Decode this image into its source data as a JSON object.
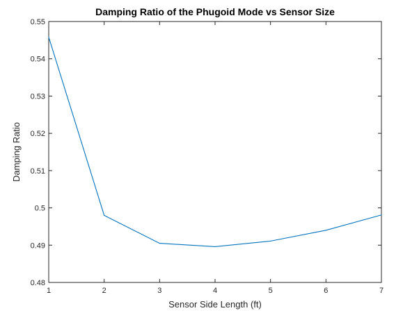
{
  "chart_data": {
    "type": "line",
    "title": "Damping Ratio of the Phugoid Mode vs Sensor Size",
    "xlabel": "Sensor Side Length (ft)",
    "ylabel": "Damping Ratio",
    "xlim": [
      1,
      7
    ],
    "ylim": [
      0.48,
      0.55
    ],
    "x_ticks": [
      "1",
      "2",
      "3",
      "4",
      "5",
      "6",
      "7"
    ],
    "y_ticks": [
      "0.48",
      "0.49",
      "0.5",
      "0.51",
      "0.52",
      "0.53",
      "0.54",
      "0.55"
    ],
    "grid": false,
    "series": [
      {
        "x": [
          1,
          2,
          3,
          4,
          5,
          6,
          7
        ],
        "y": [
          0.5458,
          0.498,
          0.4905,
          0.4896,
          0.4911,
          0.494,
          0.4981
        ]
      }
    ],
    "line_color": "#0072bd",
    "axis_color": "#262626"
  }
}
